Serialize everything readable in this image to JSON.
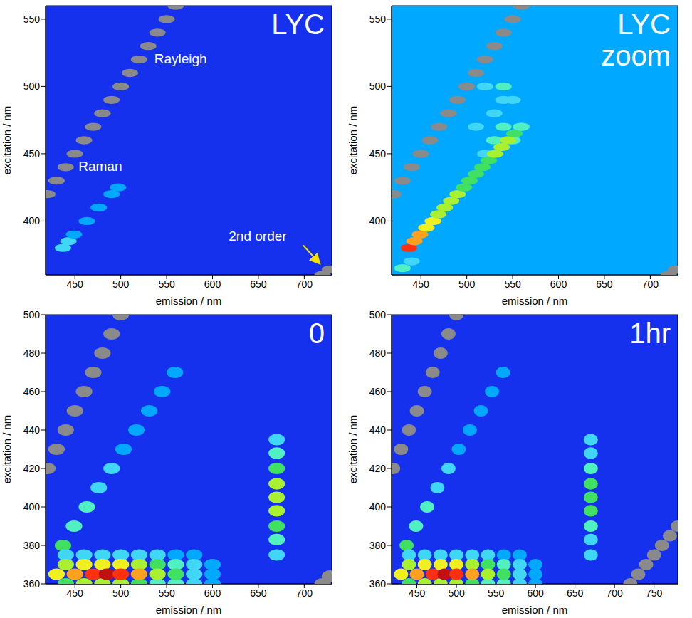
{
  "chart_data": [
    {
      "type": "heatmap",
      "title": "LYC",
      "x_label": "emission / nm",
      "y_label": "excitation / nm",
      "xlim": [
        418,
        730
      ],
      "ylim": [
        360,
        560
      ],
      "xticks": [
        450,
        500,
        550,
        600,
        650,
        700
      ],
      "yticks": [
        400,
        450,
        500,
        550
      ],
      "zlim": [
        0,
        10
      ],
      "background": 0,
      "annotations": [
        "Rayleigh",
        "Raman",
        "2nd order"
      ],
      "cells": [
        [
          420,
          420,
          10
        ],
        [
          430,
          430,
          10
        ],
        [
          440,
          440,
          10
        ],
        [
          450,
          450,
          10
        ],
        [
          460,
          460,
          10
        ],
        [
          470,
          470,
          10
        ],
        [
          480,
          480,
          10
        ],
        [
          490,
          490,
          10
        ],
        [
          500,
          500,
          10
        ],
        [
          510,
          510,
          10
        ],
        [
          520,
          520,
          10
        ],
        [
          530,
          530,
          10
        ],
        [
          540,
          540,
          10
        ],
        [
          550,
          550,
          10
        ],
        [
          560,
          560,
          10
        ],
        [
          437,
          380,
          2
        ],
        [
          443,
          385,
          2
        ],
        [
          449,
          390,
          1.5
        ],
        [
          463,
          400,
          1
        ],
        [
          476,
          410,
          1
        ],
        [
          490,
          420,
          1
        ],
        [
          497,
          425,
          1
        ],
        [
          720,
          360,
          10
        ],
        [
          728,
          364,
          10
        ]
      ]
    },
    {
      "type": "heatmap",
      "title": "LYC zoom",
      "x_label": "emission / nm",
      "y_label": "excitation / nm",
      "xlim": [
        418,
        730
      ],
      "ylim": [
        360,
        560
      ],
      "xticks": [
        450,
        500,
        550,
        600,
        650,
        700
      ],
      "yticks": [
        400,
        450,
        500,
        550
      ],
      "zlim": [
        0,
        10
      ],
      "background": 1,
      "cells": [
        [
          520,
          450,
          2
        ],
        [
          510,
          470,
          2
        ],
        [
          520,
          500,
          2
        ],
        [
          530,
          480,
          2
        ],
        [
          540,
          490,
          2
        ],
        [
          550,
          490,
          2
        ],
        [
          560,
          470,
          2
        ],
        [
          540,
          500,
          3
        ],
        [
          530,
          460,
          3
        ],
        [
          540,
          470,
          3
        ],
        [
          550,
          460,
          3
        ],
        [
          430,
          365,
          3
        ],
        [
          440,
          370,
          2
        ],
        [
          420,
          420,
          10
        ],
        [
          430,
          430,
          10
        ],
        [
          440,
          440,
          10
        ],
        [
          450,
          450,
          10
        ],
        [
          460,
          460,
          10
        ],
        [
          470,
          470,
          10
        ],
        [
          480,
          480,
          10
        ],
        [
          490,
          490,
          10
        ],
        [
          500,
          500,
          10
        ],
        [
          510,
          510,
          10
        ],
        [
          520,
          520,
          10
        ],
        [
          530,
          530,
          10
        ],
        [
          540,
          540,
          10
        ],
        [
          550,
          550,
          10
        ],
        [
          560,
          560,
          10
        ],
        [
          437,
          380,
          8
        ],
        [
          443,
          385,
          7
        ],
        [
          449,
          390,
          7
        ],
        [
          456,
          395,
          6
        ],
        [
          463,
          400,
          6
        ],
        [
          469,
          405,
          5
        ],
        [
          476,
          410,
          5
        ],
        [
          483,
          415,
          5
        ],
        [
          490,
          420,
          5
        ],
        [
          497,
          425,
          4
        ],
        [
          503,
          430,
          4
        ],
        [
          510,
          435,
          4
        ],
        [
          517,
          440,
          4
        ],
        [
          524,
          445,
          4
        ],
        [
          531,
          450,
          5
        ],
        [
          538,
          455,
          5
        ],
        [
          545,
          460,
          5
        ],
        [
          552,
          465,
          4
        ],
        [
          559,
          470,
          3
        ],
        [
          720,
          360,
          10
        ],
        [
          728,
          364,
          10
        ]
      ]
    },
    {
      "type": "heatmap",
      "title": "0",
      "x_label": "emission / nm",
      "y_label": "excitation / nm",
      "xlim": [
        418,
        730
      ],
      "ylim": [
        360,
        500
      ],
      "xticks": [
        450,
        500,
        550,
        600,
        650,
        700
      ],
      "yticks": [
        360,
        380,
        400,
        420,
        440,
        460,
        480,
        500
      ],
      "zlim": [
        0,
        10
      ],
      "background": 0,
      "cells": [
        [
          420,
          420,
          10
        ],
        [
          430,
          430,
          10
        ],
        [
          440,
          440,
          10
        ],
        [
          450,
          450,
          10
        ],
        [
          460,
          460,
          10
        ],
        [
          470,
          470,
          10
        ],
        [
          480,
          480,
          10
        ],
        [
          490,
          490,
          10
        ],
        [
          500,
          500,
          10
        ],
        [
          437,
          380,
          4
        ],
        [
          449,
          390,
          3
        ],
        [
          463,
          400,
          3
        ],
        [
          476,
          410,
          2
        ],
        [
          490,
          420,
          2
        ],
        [
          503,
          430,
          1.5
        ],
        [
          517,
          440,
          1.5
        ],
        [
          531,
          450,
          1
        ],
        [
          545,
          460,
          1
        ],
        [
          559,
          470,
          1
        ],
        [
          440,
          375,
          2
        ],
        [
          460,
          375,
          2
        ],
        [
          480,
          375,
          2.5
        ],
        [
          500,
          375,
          2.5
        ],
        [
          520,
          375,
          2
        ],
        [
          540,
          375,
          2
        ],
        [
          560,
          375,
          1.5
        ],
        [
          580,
          375,
          1.5
        ],
        [
          440,
          360,
          4
        ],
        [
          460,
          360,
          5
        ],
        [
          480,
          360,
          5
        ],
        [
          500,
          360,
          5
        ],
        [
          520,
          360,
          4
        ],
        [
          540,
          360,
          3.5
        ],
        [
          560,
          360,
          3
        ],
        [
          580,
          360,
          2
        ],
        [
          600,
          360,
          1.5
        ],
        [
          440,
          370,
          5
        ],
        [
          460,
          370,
          6
        ],
        [
          480,
          370,
          6.5
        ],
        [
          500,
          370,
          6
        ],
        [
          520,
          370,
          5
        ],
        [
          540,
          370,
          4
        ],
        [
          560,
          370,
          3
        ],
        [
          580,
          370,
          2
        ],
        [
          600,
          370,
          1.5
        ],
        [
          430,
          365,
          6
        ],
        [
          450,
          365,
          7
        ],
        [
          470,
          365,
          8
        ],
        [
          485,
          365,
          9
        ],
        [
          500,
          365,
          8
        ],
        [
          520,
          365,
          7
        ],
        [
          540,
          365,
          5
        ],
        [
          560,
          365,
          4
        ],
        [
          580,
          365,
          2.5
        ],
        [
          600,
          365,
          1.5
        ],
        [
          670,
          435,
          2
        ],
        [
          670,
          428,
          3
        ],
        [
          670,
          420,
          4
        ],
        [
          670,
          412,
          5
        ],
        [
          670,
          405,
          5.5
        ],
        [
          670,
          398,
          5
        ],
        [
          670,
          390,
          4
        ],
        [
          670,
          383,
          3
        ],
        [
          670,
          375,
          2
        ],
        [
          720,
          360,
          10
        ],
        [
          728,
          364,
          10
        ]
      ]
    },
    {
      "type": "heatmap",
      "title": "1hr",
      "x_label": "emission / nm",
      "y_label": "excitation / nm",
      "xlim": [
        418,
        780
      ],
      "ylim": [
        360,
        500
      ],
      "xticks": [
        450,
        500,
        550,
        600,
        650,
        700,
        750
      ],
      "yticks": [
        360,
        380,
        400,
        420,
        440,
        460,
        480,
        500
      ],
      "zlim": [
        0,
        10
      ],
      "background": 0,
      "cells": [
        [
          420,
          420,
          10
        ],
        [
          430,
          430,
          10
        ],
        [
          440,
          440,
          10
        ],
        [
          450,
          450,
          10
        ],
        [
          460,
          460,
          10
        ],
        [
          470,
          470,
          10
        ],
        [
          480,
          480,
          10
        ],
        [
          490,
          490,
          10
        ],
        [
          500,
          500,
          10
        ],
        [
          437,
          380,
          4
        ],
        [
          449,
          390,
          3
        ],
        [
          463,
          400,
          3
        ],
        [
          476,
          410,
          2
        ],
        [
          490,
          420,
          2
        ],
        [
          503,
          430,
          1.5
        ],
        [
          517,
          440,
          1.5
        ],
        [
          531,
          450,
          1
        ],
        [
          545,
          460,
          1
        ],
        [
          559,
          470,
          1
        ],
        [
          440,
          375,
          2
        ],
        [
          460,
          375,
          2
        ],
        [
          480,
          375,
          2.5
        ],
        [
          500,
          375,
          2.5
        ],
        [
          520,
          375,
          2
        ],
        [
          540,
          375,
          2
        ],
        [
          560,
          375,
          1.5
        ],
        [
          580,
          375,
          1.5
        ],
        [
          440,
          360,
          4
        ],
        [
          460,
          360,
          5
        ],
        [
          480,
          360,
          5
        ],
        [
          500,
          360,
          5
        ],
        [
          520,
          360,
          4
        ],
        [
          540,
          360,
          3.5
        ],
        [
          560,
          360,
          3
        ],
        [
          580,
          360,
          2
        ],
        [
          600,
          360,
          1.5
        ],
        [
          440,
          370,
          5
        ],
        [
          460,
          370,
          6
        ],
        [
          480,
          370,
          6.5
        ],
        [
          500,
          370,
          6
        ],
        [
          520,
          370,
          5
        ],
        [
          540,
          370,
          4
        ],
        [
          560,
          370,
          3
        ],
        [
          580,
          370,
          2
        ],
        [
          600,
          370,
          1.5
        ],
        [
          430,
          365,
          6
        ],
        [
          450,
          365,
          7
        ],
        [
          470,
          365,
          8
        ],
        [
          485,
          365,
          9
        ],
        [
          500,
          365,
          8
        ],
        [
          520,
          365,
          7
        ],
        [
          540,
          365,
          5
        ],
        [
          560,
          365,
          4
        ],
        [
          580,
          365,
          2.5
        ],
        [
          600,
          365,
          1.5
        ],
        [
          670,
          435,
          2
        ],
        [
          670,
          428,
          2.5
        ],
        [
          670,
          420,
          3
        ],
        [
          670,
          412,
          4
        ],
        [
          670,
          405,
          4.5
        ],
        [
          670,
          398,
          4
        ],
        [
          670,
          390,
          3
        ],
        [
          670,
          383,
          2.5
        ],
        [
          670,
          375,
          2
        ],
        [
          720,
          360,
          10
        ],
        [
          730,
          365,
          10
        ],
        [
          740,
          370,
          10
        ],
        [
          750,
          375,
          10
        ],
        [
          760,
          380,
          10
        ],
        [
          770,
          385,
          10
        ],
        [
          780,
          390,
          10
        ]
      ]
    }
  ]
}
